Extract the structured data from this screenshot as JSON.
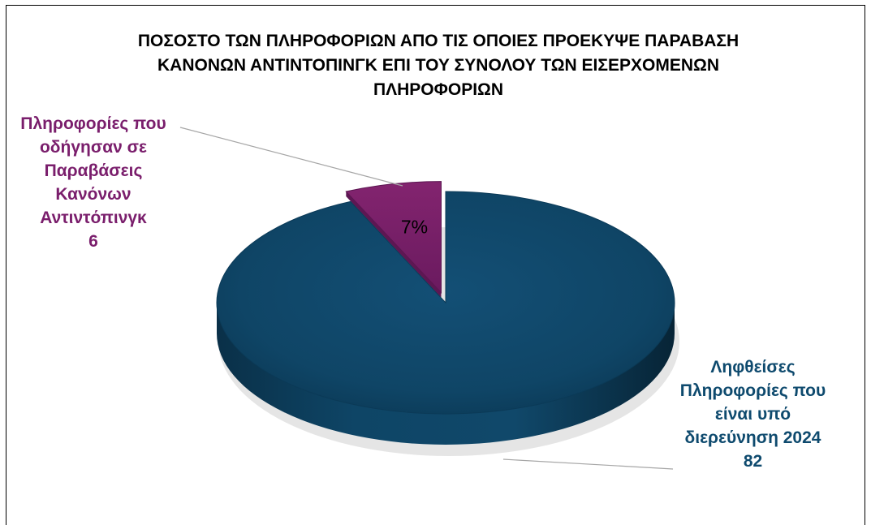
{
  "chart_data": {
    "type": "pie",
    "title_lines": [
      "ΠΟΣΟΣΤΟ ΤΩΝ ΠΛΗΡΟΦΟΡΙΩΝ ΑΠΟ ΤΙΣ ΟΠΟΙΕΣ ΠΡΟΕΚΥΨΕ ΠΑΡΑΒΑΣΗ",
      "ΚΑΝΟΝΩΝ ΑΝΤΙΝΤΟΠΙΝΓΚ ΕΠΙ ΤΟΥ ΣΥΝΟΛΟΥ ΤΩΝ ΕΙΣΕΡΧΟΜΕΝΩΝ",
      "ΠΛΗΡΟΦΟΡΙΩΝ"
    ],
    "slices": [
      {
        "label_lines": [
          "Πληροφορίες που",
          "οδήγησαν σε",
          "Παραβάσεις",
          "Κανόνων",
          "Αντιντόπινγκ",
          "6"
        ],
        "value": 6,
        "percent_label": "7%",
        "color": "#7a1e6c",
        "exploded": true
      },
      {
        "label_lines": [
          "Ληφθείσες",
          "Πληροφορίες που",
          "είναι υπό",
          "διερεύνηση 2024",
          "82"
        ],
        "value": 82,
        "percent_label": "",
        "color": "#0e4a6e",
        "exploded": false
      }
    ]
  }
}
